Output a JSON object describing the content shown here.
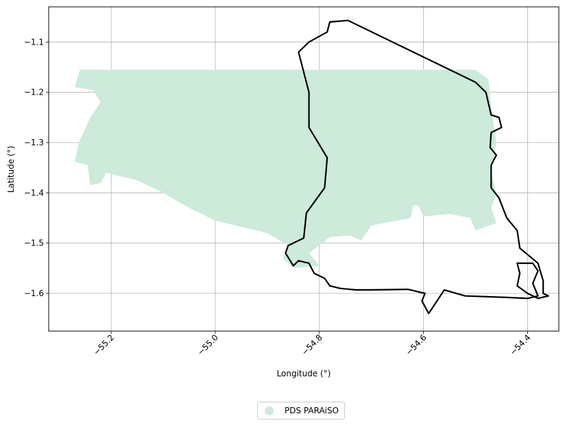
{
  "chart_data": {
    "type": "map",
    "title": "",
    "xlabel": "Longitude (°)",
    "ylabel": "Latitude (°)",
    "xlim": [
      -55.32,
      -54.34
    ],
    "ylim": [
      -1.675,
      -1.03
    ],
    "xticks": [
      -55.2,
      -55.0,
      -54.8,
      -54.6,
      -54.4
    ],
    "xtick_labels": [
      "−55.2",
      "−55.0",
      "−54.8",
      "−54.6",
      "−54.4"
    ],
    "yticks": [
      -1.1,
      -1.2,
      -1.3,
      -1.4,
      -1.5,
      -1.6
    ],
    "ytick_labels": [
      "−1.1",
      "−1.2",
      "−1.3",
      "−1.4",
      "−1.5",
      "−1.6"
    ],
    "grid": true,
    "legend_placement": "bottom-center",
    "series": [
      {
        "name": "PDS PARAiSO",
        "kind": "filled-area",
        "color": "#cdeadb",
        "lonlat": [
          [
            -55.26,
            -1.155
          ],
          [
            -54.5,
            -1.155
          ],
          [
            -54.475,
            -1.175
          ],
          [
            -54.47,
            -1.23
          ],
          [
            -54.46,
            -1.3
          ],
          [
            -54.47,
            -1.36
          ],
          [
            -54.46,
            -1.4
          ],
          [
            -54.47,
            -1.43
          ],
          [
            -54.46,
            -1.46
          ],
          [
            -54.5,
            -1.475
          ],
          [
            -54.51,
            -1.45
          ],
          [
            -54.55,
            -1.442
          ],
          [
            -54.6,
            -1.447
          ],
          [
            -54.61,
            -1.425
          ],
          [
            -54.62,
            -1.425
          ],
          [
            -54.625,
            -1.45
          ],
          [
            -54.7,
            -1.465
          ],
          [
            -54.72,
            -1.495
          ],
          [
            -54.74,
            -1.485
          ],
          [
            -54.78,
            -1.488
          ],
          [
            -54.82,
            -1.52
          ],
          [
            -54.8,
            -1.545
          ],
          [
            -54.85,
            -1.55
          ],
          [
            -54.87,
            -1.53
          ],
          [
            -54.86,
            -1.505
          ],
          [
            -54.9,
            -1.48
          ],
          [
            -55.0,
            -1.455
          ],
          [
            -55.05,
            -1.43
          ],
          [
            -55.1,
            -1.4
          ],
          [
            -55.15,
            -1.375
          ],
          [
            -55.21,
            -1.36
          ],
          [
            -55.22,
            -1.38
          ],
          [
            -55.24,
            -1.385
          ],
          [
            -55.245,
            -1.345
          ],
          [
            -55.27,
            -1.338
          ],
          [
            -55.262,
            -1.3
          ],
          [
            -55.24,
            -1.25
          ],
          [
            -55.22,
            -1.22
          ],
          [
            -55.235,
            -1.195
          ],
          [
            -55.27,
            -1.19
          ],
          [
            -55.26,
            -1.155
          ]
        ]
      },
      {
        "name": "",
        "kind": "outline",
        "color": "#000000",
        "lonlat": [
          [
            -54.745,
            -1.057
          ],
          [
            -54.5,
            -1.18
          ],
          [
            -54.48,
            -1.2
          ],
          [
            -54.47,
            -1.245
          ],
          [
            -54.455,
            -1.25
          ],
          [
            -54.45,
            -1.27
          ],
          [
            -54.47,
            -1.28
          ],
          [
            -54.472,
            -1.31
          ],
          [
            -54.46,
            -1.325
          ],
          [
            -54.47,
            -1.345
          ],
          [
            -54.47,
            -1.39
          ],
          [
            -54.455,
            -1.41
          ],
          [
            -54.44,
            -1.45
          ],
          [
            -54.42,
            -1.475
          ],
          [
            -54.415,
            -1.51
          ],
          [
            -54.38,
            -1.54
          ],
          [
            -54.37,
            -1.575
          ],
          [
            -54.37,
            -1.6
          ],
          [
            -54.36,
            -1.605
          ],
          [
            -54.38,
            -1.61
          ],
          [
            -54.4,
            -1.6
          ],
          [
            -54.42,
            -1.585
          ],
          [
            -54.415,
            -1.56
          ],
          [
            -54.42,
            -1.54
          ],
          [
            -54.39,
            -1.54
          ],
          [
            -54.38,
            -1.555
          ],
          [
            -54.39,
            -1.58
          ],
          [
            -54.38,
            -1.605
          ],
          [
            -54.4,
            -1.61
          ],
          [
            -54.44,
            -1.608
          ],
          [
            -54.52,
            -1.605
          ],
          [
            -54.56,
            -1.593
          ],
          [
            -54.59,
            -1.64
          ],
          [
            -54.603,
            -1.615
          ],
          [
            -54.597,
            -1.6
          ],
          [
            -54.63,
            -1.592
          ],
          [
            -54.7,
            -1.593
          ],
          [
            -54.73,
            -1.593
          ],
          [
            -54.76,
            -1.59
          ],
          [
            -54.78,
            -1.585
          ],
          [
            -54.79,
            -1.57
          ],
          [
            -54.81,
            -1.56
          ],
          [
            -54.82,
            -1.54
          ],
          [
            -54.84,
            -1.535
          ],
          [
            -54.85,
            -1.545
          ],
          [
            -54.865,
            -1.52
          ],
          [
            -54.86,
            -1.505
          ],
          [
            -54.83,
            -1.49
          ],
          [
            -54.825,
            -1.44
          ],
          [
            -54.79,
            -1.39
          ],
          [
            -54.785,
            -1.33
          ],
          [
            -54.82,
            -1.27
          ],
          [
            -54.82,
            -1.2
          ],
          [
            -54.84,
            -1.12
          ],
          [
            -54.82,
            -1.1
          ],
          [
            -54.785,
            -1.08
          ],
          [
            -54.78,
            -1.06
          ],
          [
            -54.745,
            -1.057
          ]
        ]
      }
    ]
  }
}
